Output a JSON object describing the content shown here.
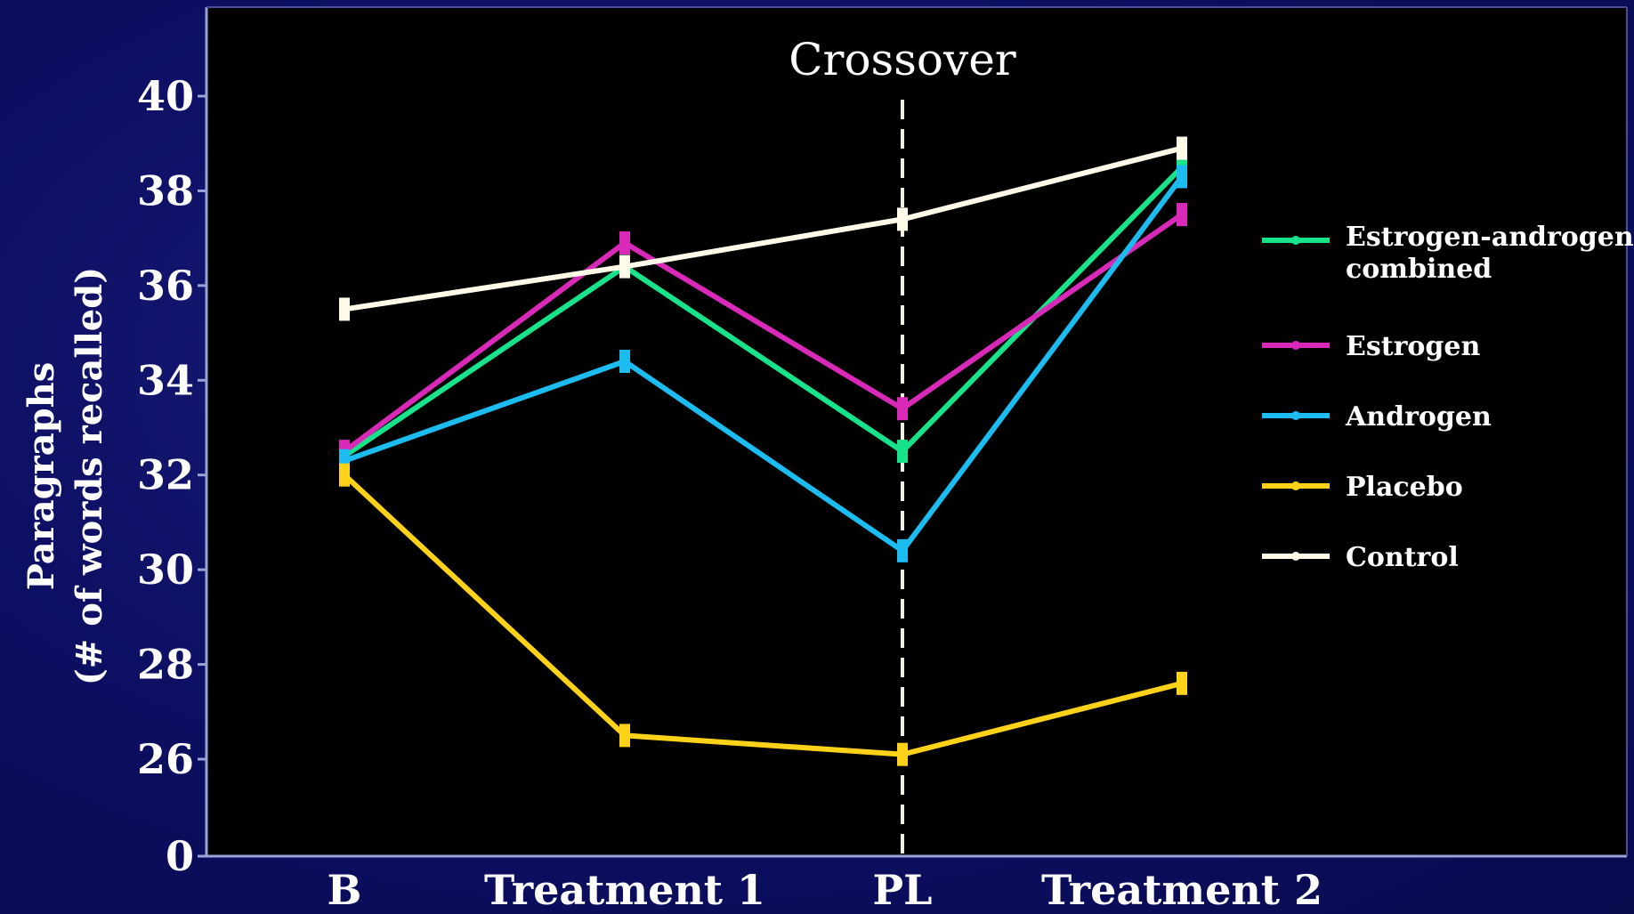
{
  "chart_data": {
    "type": "line",
    "ylabel_line1": "Paragraphs",
    "ylabel_line2": "(# of words recalled)",
    "xlabel": "",
    "categories": [
      "B",
      "Treatment 1",
      "PL",
      "Treatment 2"
    ],
    "yticks": [
      "0",
      "26",
      "28",
      "30",
      "32",
      "34",
      "36",
      "38",
      "40"
    ],
    "ylim": [
      24,
      41.5
    ],
    "y_axis_break": "0",
    "annotation": "Crossover",
    "annotation_position": "PL",
    "legend_position": "right",
    "grid": false,
    "series": [
      {
        "name": "Estrogen-androgen combined",
        "name_line1": "Estrogen-androgen",
        "name_line2": "combined",
        "color": "#19e38a",
        "values": [
          32.4,
          36.4,
          32.5,
          38.5
        ]
      },
      {
        "name": "Estrogen",
        "color": "#d829b8",
        "values": [
          32.5,
          36.9,
          33.4,
          37.5
        ]
      },
      {
        "name": "Androgen",
        "color": "#1cbcf0",
        "values": [
          32.3,
          34.4,
          30.4,
          38.3
        ]
      },
      {
        "name": "Placebo",
        "color": "#ffd21a",
        "values": [
          32.0,
          26.5,
          26.1,
          27.6
        ]
      },
      {
        "name": "Control",
        "color": "#fffbe8",
        "values": [
          35.5,
          36.4,
          37.4,
          38.9
        ]
      }
    ]
  }
}
